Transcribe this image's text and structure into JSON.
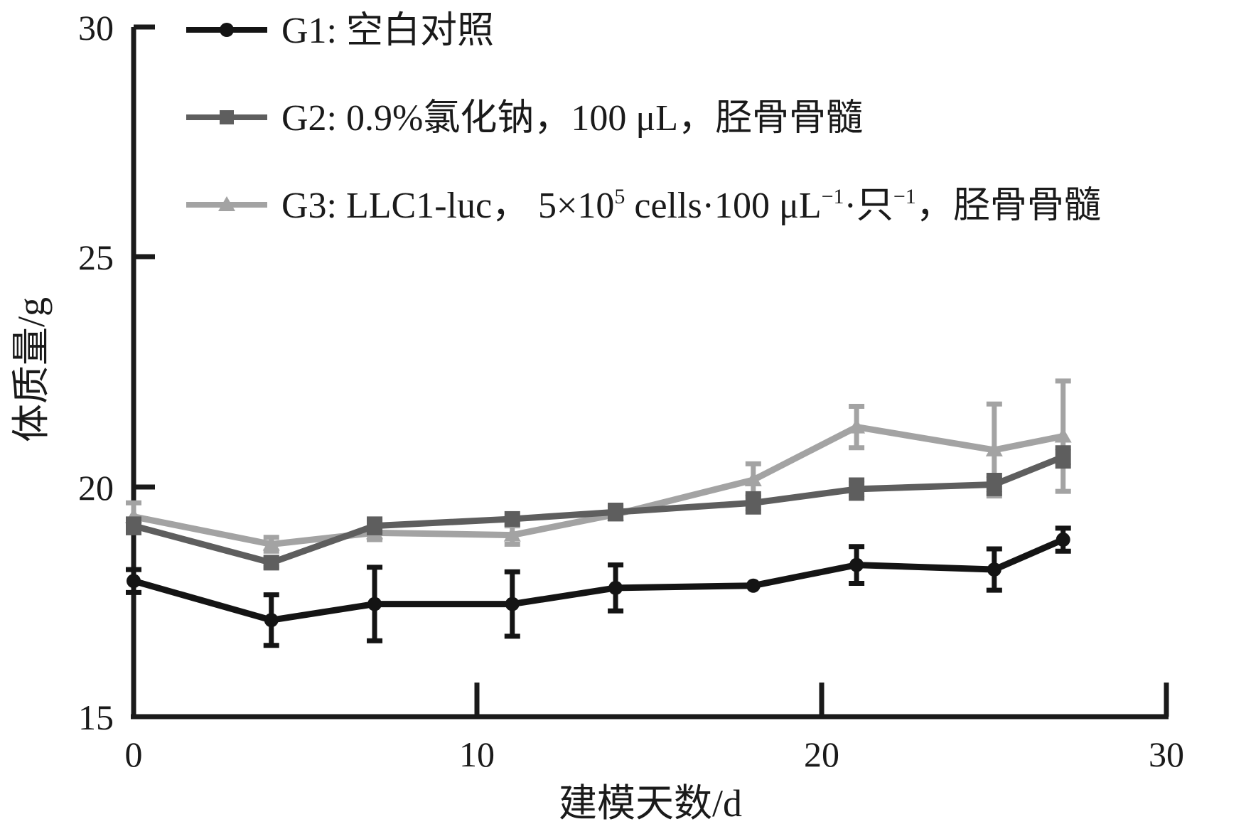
{
  "chart_data": {
    "type": "line",
    "xlabel": "建模天数/d",
    "ylabel": "体质量/g",
    "xlim": [
      0,
      30
    ],
    "ylim": [
      15,
      30
    ],
    "xticks": [
      "0",
      "10",
      "20",
      "30"
    ],
    "yticks": [
      "15",
      "20",
      "25",
      "30"
    ],
    "x": [
      0,
      4,
      7,
      11,
      14,
      18,
      21,
      25,
      27
    ],
    "series": [
      {
        "name": "G1",
        "color": "#141414",
        "marker": "circle",
        "values": [
          17.95,
          17.1,
          17.45,
          17.45,
          17.8,
          17.85,
          18.3,
          18.2,
          18.85
        ],
        "errors": [
          0.25,
          0.55,
          0.8,
          0.7,
          0.5,
          0.0,
          0.4,
          0.45,
          0.25
        ]
      },
      {
        "name": "G2",
        "color": "#5e5e5e",
        "marker": "square",
        "values": [
          19.15,
          18.35,
          19.15,
          19.3,
          19.45,
          19.65,
          19.95,
          20.05,
          20.65
        ],
        "errors": [
          0.15,
          0.1,
          0.15,
          0.0,
          0.15,
          0.2,
          0.2,
          0.2,
          0.2
        ]
      },
      {
        "name": "G3",
        "color": "#a3a3a3",
        "marker": "triangle",
        "values": [
          19.35,
          18.75,
          19.0,
          18.95,
          19.4,
          20.15,
          21.3,
          20.8,
          21.1
        ],
        "errors": [
          0.3,
          0.15,
          0.15,
          0.2,
          0.1,
          0.35,
          0.45,
          1.0,
          1.2
        ]
      }
    ],
    "legend": {
      "placement": "top",
      "entries": [
        {
          "label": "G1: 空白对照"
        },
        {
          "label": "G2: 0.9%氯化钠，100 μL，胫骨骨髓"
        },
        {
          "label_a": "G3: LLC1-luc，  5×10",
          "sup1": "5",
          "label_b": " cells·100 μL",
          "sup2": "−1",
          "label_c": "·只",
          "sup3": "−1",
          "label_d": "，胫骨骨髓"
        }
      ]
    }
  }
}
